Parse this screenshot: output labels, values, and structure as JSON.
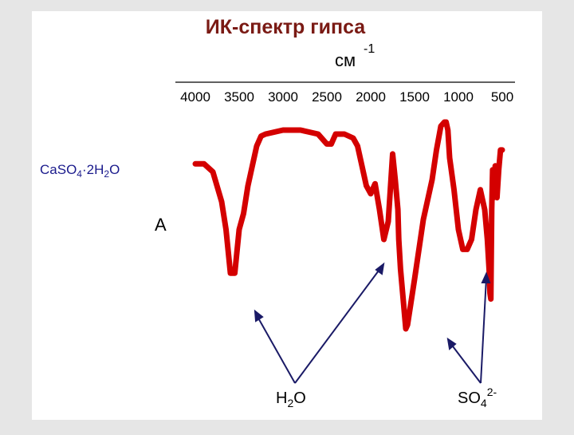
{
  "title": "ИК-спектр гипса",
  "chart_data": {
    "type": "line",
    "title": "ИК-спектр гипса",
    "xlabel": "см",
    "xlabel_exponent": "-1",
    "ylabel": "A",
    "x_ticks": [
      4000,
      3500,
      3000,
      2500,
      2000,
      1500,
      1000,
      500
    ],
    "x_tick_labels": [
      "4000",
      "3500",
      "3000",
      "2500",
      "2000",
      "1500",
      "1000",
      "500"
    ],
    "xlim": [
      4000,
      500
    ],
    "x_reversed": true,
    "y_axis_shown": false,
    "formula": {
      "ca": "Ca",
      "so": "SO",
      "so_sub": "4",
      "dot": "·",
      "two": "2",
      "h": "H",
      "h_sub": "2",
      "o": "O"
    },
    "series": [
      {
        "color": "#d40000",
        "x": [
          4000,
          3900,
          3800,
          3700,
          3650,
          3600,
          3550,
          3500,
          3450,
          3400,
          3350,
          3300,
          3250,
          3200,
          3100,
          3000,
          2900,
          2800,
          2700,
          2600,
          2500,
          2450,
          2400,
          2350,
          2300,
          2250,
          2200,
          2150,
          2100,
          2050,
          2000,
          1950,
          1900,
          1850,
          1800,
          1750,
          1720,
          1690,
          1680,
          1660,
          1620,
          1600,
          1580,
          1500,
          1400,
          1300,
          1250,
          1200,
          1160,
          1140,
          1120,
          1100,
          1050,
          1000,
          950,
          900,
          850,
          800,
          750,
          700,
          670,
          650,
          640,
          630,
          620,
          610,
          600,
          580,
          560,
          540,
          520,
          500
        ],
        "y": [
          0.17,
          0.17,
          0.21,
          0.36,
          0.5,
          0.72,
          0.72,
          0.5,
          0.42,
          0.28,
          0.18,
          0.08,
          0.03,
          0.02,
          0.01,
          0.0,
          0.0,
          0.0,
          0.01,
          0.02,
          0.07,
          0.07,
          0.02,
          0.02,
          0.02,
          0.03,
          0.04,
          0.08,
          0.18,
          0.28,
          0.32,
          0.27,
          0.4,
          0.55,
          0.46,
          0.12,
          0.25,
          0.4,
          0.55,
          0.7,
          0.9,
          1.0,
          0.98,
          0.75,
          0.45,
          0.25,
          0.1,
          -0.02,
          -0.04,
          -0.04,
          0.0,
          0.14,
          0.3,
          0.5,
          0.6,
          0.6,
          0.55,
          0.4,
          0.3,
          0.4,
          0.55,
          0.7,
          0.82,
          0.85,
          0.4,
          0.2,
          0.34,
          0.18,
          0.34,
          0.2,
          0.1,
          0.1
        ]
      }
    ]
  },
  "annotations": {
    "h2o_label": "H",
    "h2o_sub": "2",
    "h2o_label_end": "O",
    "so4_label": "SO",
    "so4_sub": "4",
    "so4_sup": "2-"
  }
}
